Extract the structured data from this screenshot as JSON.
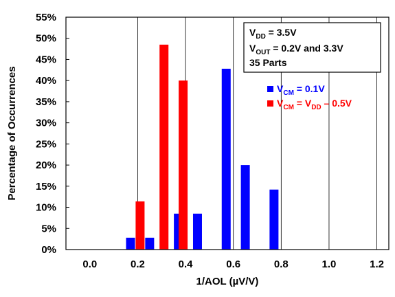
{
  "chart_data": {
    "type": "bar",
    "xlabel": "1/AOL (µV/V)",
    "ylabel": "Percentage of Occurrences",
    "xlim": [
      -0.1,
      1.25
    ],
    "ylim": [
      0,
      55
    ],
    "x_ticks": [
      "0.0",
      "0.2",
      "0.4",
      "0.6",
      "0.8",
      "1.0",
      "1.2"
    ],
    "x_tick_values": [
      0.0,
      0.2,
      0.4,
      0.6,
      0.8,
      1.0,
      1.2
    ],
    "y_ticks": [
      "0%",
      "5%",
      "10%",
      "15%",
      "20%",
      "25%",
      "30%",
      "35%",
      "40%",
      "45%",
      "50%",
      "55%"
    ],
    "y_tick_values": [
      0,
      5,
      10,
      15,
      20,
      25,
      30,
      35,
      40,
      45,
      50,
      55
    ],
    "grid": "vertical",
    "legend_placement": "top-right",
    "notes": {
      "line1": {
        "sym": "V",
        "sub": "DD",
        "rest": " = 3.5V"
      },
      "line2": {
        "sym": "V",
        "sub": "OUT",
        "rest": " = 0.2V and 3.3V"
      },
      "line3": "35 Parts"
    },
    "series": [
      {
        "name": "V_CM = 0.1V",
        "label": {
          "sym": "V",
          "sub": "CM",
          "rest": " = 0.1V"
        },
        "color": "#0000ff",
        "x": [
          0.17,
          0.25,
          0.37,
          0.45,
          0.57,
          0.65,
          0.77
        ],
        "values": [
          2.8,
          2.8,
          8.5,
          8.5,
          42.8,
          20.0,
          14.2
        ]
      },
      {
        "name": "V_CM = V_DD – 0.5V",
        "label": {
          "sym": "V",
          "sub": "CM",
          "mid": " = V",
          "sub2": "DD",
          "rest": " – 0.5V"
        },
        "color": "#ff0000",
        "x": [
          0.21,
          0.31,
          0.39
        ],
        "values": [
          11.4,
          48.5,
          40.0
        ]
      }
    ]
  }
}
